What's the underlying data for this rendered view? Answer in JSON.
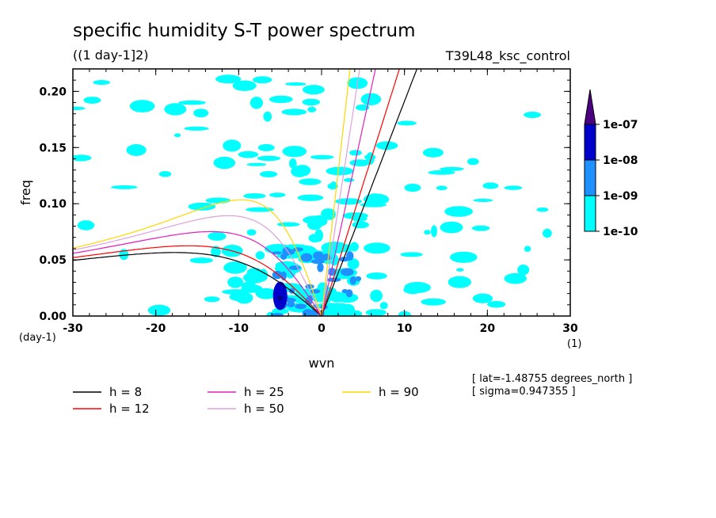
{
  "chart_data": {
    "type": "contour",
    "title": "specific humidity S-T power spectrum",
    "subtitle": "((1 day-1]2)",
    "experiment": "T39L48_ksc_control",
    "xlabel": "wvn",
    "ylabel": "freq",
    "x_unit": "(1)",
    "y_unit": "(day-1)",
    "xlim": [
      -30,
      30
    ],
    "ylim": [
      0,
      0.22
    ],
    "x_ticks": [
      "-30",
      "-20",
      "-10",
      "0",
      "10",
      "20",
      "30"
    ],
    "y_ticks": [
      "0.00",
      "0.05",
      "0.10",
      "0.15",
      "0.20"
    ],
    "colorbar": {
      "labels": [
        "1e-10",
        "1e-09",
        "1e-08",
        "1e-07"
      ],
      "colors": [
        "#00ffff",
        "#1e90ff",
        "#0000cd",
        "#000080",
        "#4b0082"
      ]
    },
    "info": [
      "[ lat=-1.48755 degrees_north ]",
      "[ sigma=0.947355 ]"
    ],
    "dispersion_curves": [
      {
        "label": "h =  8",
        "h": 8,
        "color": "#000000"
      },
      {
        "label": "h = 12",
        "h": 12,
        "color": "#ff0000"
      },
      {
        "label": "h = 25",
        "h": 25,
        "color": "#e020c0"
      },
      {
        "label": "h = 50",
        "h": 50,
        "color": "#dda0dd"
      },
      {
        "label": "h = 90",
        "h": 90,
        "color": "#ffd700"
      }
    ],
    "power_regions": [
      {
        "level": "1e-10",
        "x": [
          -30,
          30
        ],
        "y": [
          0,
          0.22
        ]
      },
      {
        "level": "1e-09",
        "x": [
          -6,
          5
        ],
        "y": [
          0,
          0.06
        ]
      },
      {
        "level": "1e-08",
        "x": [
          -5.5,
          -4.5
        ],
        "y": [
          0.008,
          0.03
        ]
      }
    ]
  }
}
